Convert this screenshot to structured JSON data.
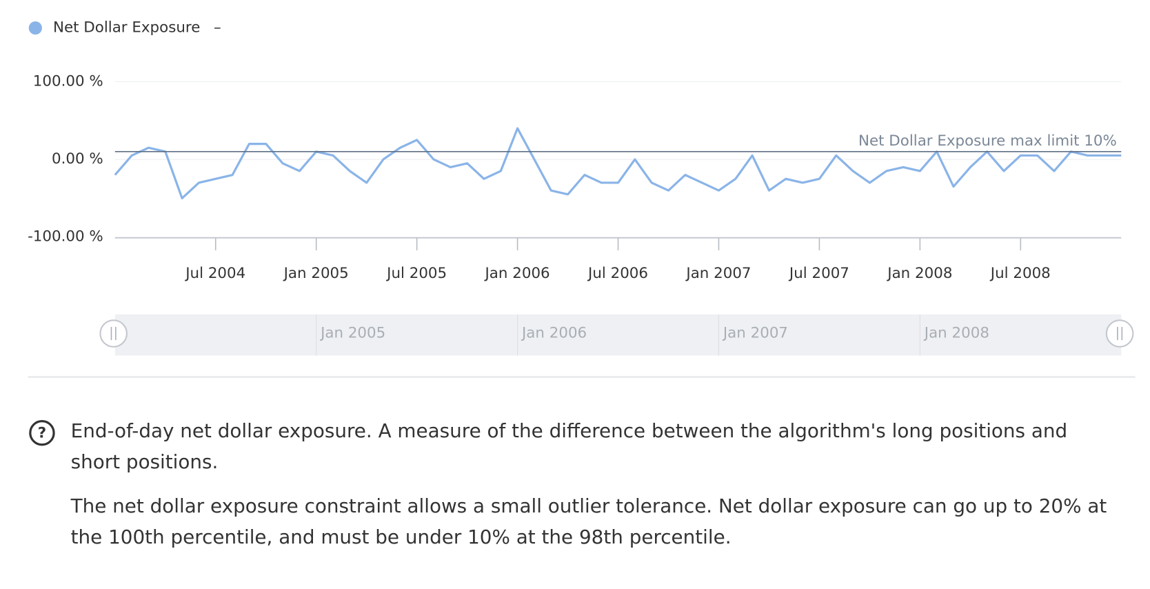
{
  "chart_data": {
    "type": "line",
    "legend_toggle": "–",
    "x": [
      "2004-01",
      "2004-02",
      "2004-03",
      "2004-04",
      "2004-05",
      "2004-06",
      "2004-07",
      "2004-08",
      "2004-09",
      "2004-10",
      "2004-11",
      "2004-12",
      "2005-01",
      "2005-02",
      "2005-03",
      "2005-04",
      "2005-05",
      "2005-06",
      "2005-07",
      "2005-08",
      "2005-09",
      "2005-10",
      "2005-11",
      "2005-12",
      "2006-01",
      "2006-02",
      "2006-03",
      "2006-04",
      "2006-05",
      "2006-06",
      "2006-07",
      "2006-08",
      "2006-09",
      "2006-10",
      "2006-11",
      "2006-12",
      "2007-01",
      "2007-02",
      "2007-03",
      "2007-04",
      "2007-05",
      "2007-06",
      "2007-07",
      "2007-08",
      "2007-09",
      "2007-10",
      "2007-11",
      "2007-12",
      "2008-01",
      "2008-02",
      "2008-03",
      "2008-04",
      "2008-05",
      "2008-06",
      "2008-07",
      "2008-08",
      "2008-09",
      "2008-10",
      "2008-11",
      "2008-12",
      "2009-01"
    ],
    "series": [
      {
        "name": "Net Dollar Exposure",
        "color": "#8ab4e8",
        "values": [
          -20,
          5,
          15,
          10,
          -50,
          -30,
          -25,
          -20,
          20,
          20,
          -5,
          -15,
          10,
          5,
          -15,
          -30,
          0,
          15,
          25,
          0,
          -10,
          -5,
          -25,
          -15,
          40,
          0,
          -40,
          -45,
          -20,
          -30,
          -30,
          0,
          -30,
          -40,
          -20,
          -30,
          -40,
          -25,
          5,
          -40,
          -25,
          -30,
          -25,
          5,
          -15,
          -30,
          -15,
          -10,
          -15,
          10,
          -35,
          -10,
          10,
          -15,
          5,
          5,
          -15,
          10,
          5,
          5,
          5
        ]
      }
    ],
    "xlim": [
      "2004-01",
      "2009-01"
    ],
    "xticks": [
      {
        "value": "2004-07",
        "label": "Jul 2004"
      },
      {
        "value": "2005-01",
        "label": "Jan 2005"
      },
      {
        "value": "2005-07",
        "label": "Jul 2005"
      },
      {
        "value": "2006-01",
        "label": "Jan 2006"
      },
      {
        "value": "2006-07",
        "label": "Jul 2006"
      },
      {
        "value": "2007-01",
        "label": "Jan 2007"
      },
      {
        "value": "2007-07",
        "label": "Jul 2007"
      },
      {
        "value": "2008-01",
        "label": "Jan 2008"
      },
      {
        "value": "2008-07",
        "label": "Jul 2008"
      }
    ],
    "ylim": [
      -100,
      100
    ],
    "yticks": [
      {
        "value": -100,
        "label": "-100.00 %"
      },
      {
        "value": 0,
        "label": "0.00 %"
      },
      {
        "value": 100,
        "label": "100.00 %"
      }
    ],
    "grid": true,
    "plot_line": {
      "value": 10,
      "label": "Net Dollar Exposure max limit 10%"
    },
    "navigator_ticks": [
      {
        "value": "2005-01",
        "label": "Jan 2005"
      },
      {
        "value": "2006-01",
        "label": "Jan 2006"
      },
      {
        "value": "2007-01",
        "label": "Jan 2007"
      },
      {
        "value": "2008-01",
        "label": "Jan 2008"
      }
    ]
  },
  "help": {
    "icon": "?",
    "paragraphs": [
      "End-of-day net dollar exposure. A measure of the difference between the algorithm's long positions and short positions.",
      "The net dollar exposure constraint allows a small outlier tolerance. Net dollar exposure can go up to 20% at the 100th percentile, and must be under 10% at the 98th percentile."
    ]
  }
}
